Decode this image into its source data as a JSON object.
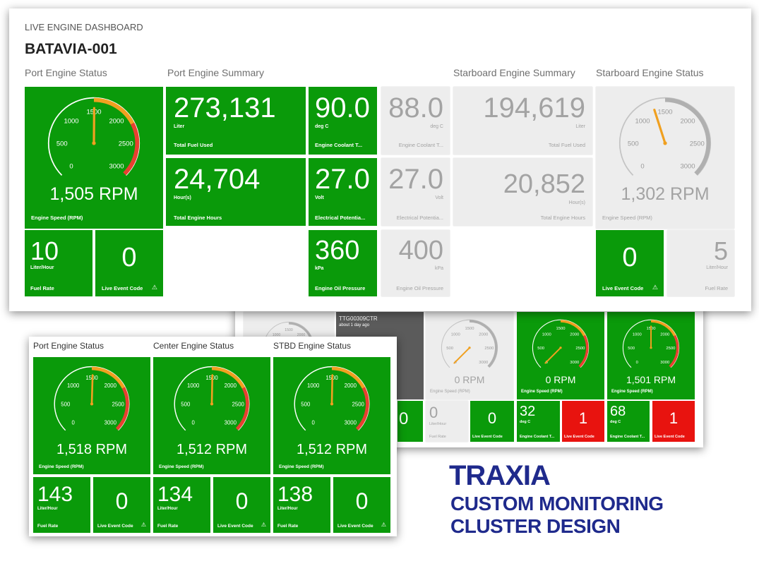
{
  "main": {
    "app_title": "LIVE ENGINE DASHBOARD",
    "vessel": "BATAVIA-001",
    "sections": {
      "port_status": "Port Engine Status",
      "port_summary": "Port Engine Summary",
      "stbd_summary": "Starboard Engine Summary",
      "stbd_status": "Starboard Engine Status"
    },
    "port_gauge": {
      "rpm": 1505,
      "rpm_text": "1,505 RPM",
      "label": "Engine Speed (RPM)"
    },
    "stbd_gauge": {
      "rpm": 1302,
      "rpm_text": "1,302 RPM",
      "label": "Engine Speed (RPM)"
    },
    "port_fuel_used": {
      "value": "273,131",
      "unit": "Liter",
      "label": "Total Fuel Used"
    },
    "port_hours": {
      "value": "24,704",
      "unit": "Hour(s)",
      "label": "Total Engine Hours"
    },
    "port_coolant": {
      "value": "90.0",
      "unit": "deg C",
      "label": "Engine Coolant T..."
    },
    "port_volt": {
      "value": "27.0",
      "unit": "Volt",
      "label": "Electrical Potentia..."
    },
    "port_oil": {
      "value": "360",
      "unit": "kPa",
      "label": "Engine Oil Pressure"
    },
    "stbd_coolant": {
      "value": "88.0",
      "unit": "deg C",
      "label": "Engine Coolant T..."
    },
    "stbd_volt": {
      "value": "27.0",
      "unit": "Volt",
      "label": "Electrical Potentia..."
    },
    "stbd_oil": {
      "value": "400",
      "unit": "kPa",
      "label": "Engine Oil Pressure"
    },
    "stbd_fuel_used": {
      "value": "194,619",
      "unit": "Liter",
      "label": "Total Fuel Used"
    },
    "stbd_hours": {
      "value": "20,852",
      "unit": "Hour(s)",
      "label": "Total Engine Hours"
    },
    "port_fuel_rate": {
      "value": "10",
      "unit": "Liter/Hour",
      "label": "Fuel Rate"
    },
    "port_event": {
      "value": "0",
      "label": "Live Event Code"
    },
    "stbd_event": {
      "value": "0",
      "label": "Live Event Code"
    },
    "stbd_fuel_rate": {
      "value": "5",
      "unit": "Liter/Hour",
      "label": "Fuel Rate"
    }
  },
  "middle": {
    "device_name": "TTG00309CTR",
    "device_time": "about 1 day ago",
    "gauge_grey": {
      "rpm": 0,
      "rpm_text": "0 RPM",
      "label": "Engine Speed (RPM)"
    },
    "gauge_green1": {
      "rpm": 0,
      "rpm_text": "0 RPM",
      "label": "Engine Speed (RPM)"
    },
    "gauge_green2": {
      "rpm": 1501,
      "rpm_text": "1,501 RPM",
      "label": "Engine Speed (RPM)"
    },
    "partial_value": "0",
    "fuel_rate": {
      "value": "0",
      "unit": "Liter/Hour",
      "label": "Fuel Rate"
    },
    "event1": {
      "value": "0",
      "label": "Live Event Code"
    },
    "coolant1": {
      "value": "32",
      "unit": "deg C",
      "label": "Engine Coolant T..."
    },
    "event2": {
      "value": "1",
      "label": "Live Event Code"
    },
    "coolant2": {
      "value": "68",
      "unit": "deg C",
      "label": "Engine Coolant T..."
    },
    "event3": {
      "value": "1",
      "label": "Live Event Code"
    }
  },
  "front": {
    "sections": {
      "port": "Port Engine Status",
      "center": "Center Engine Status",
      "stbd": "STBD Engine Status"
    },
    "port_gauge": {
      "rpm": 1518,
      "rpm_text": "1,518 RPM",
      "label": "Engine Speed (RPM)"
    },
    "center_gauge": {
      "rpm": 1512,
      "rpm_text": "1,512 RPM",
      "label": "Engine Speed (RPM)"
    },
    "stbd_gauge": {
      "rpm": 1512,
      "rpm_text": "1,512 RPM",
      "label": "Engine Speed (RPM)"
    },
    "port_fuel": {
      "value": "143",
      "unit": "Liter/Hour",
      "label": "Fuel Rate"
    },
    "port_event": {
      "value": "0",
      "label": "Live Event Code"
    },
    "center_fuel": {
      "value": "134",
      "unit": "Liter/Hour",
      "label": "Fuel Rate"
    },
    "center_event": {
      "value": "0",
      "label": "Live Event Code"
    },
    "stbd_fuel": {
      "value": "138",
      "unit": "Liter/Hour",
      "label": "Fuel Rate"
    },
    "stbd_event": {
      "value": "0",
      "label": "Live Event Code"
    }
  },
  "gauge_ticks": [
    "0",
    "500",
    "1000",
    "1500",
    "2000",
    "2500",
    "3000"
  ],
  "icons": {
    "warning": "⚠"
  },
  "brand": {
    "name": "TRAXIA",
    "line1": "CUSTOM MONITORING",
    "line2": "CLUSTER DESIGN"
  },
  "colors": {
    "green": "#0a9a0a",
    "red": "#e8130f",
    "orange": "#f0a020",
    "gauge_red": "#e84030",
    "grey_tile": "#ededed",
    "brand_blue": "#1f2a8c"
  }
}
